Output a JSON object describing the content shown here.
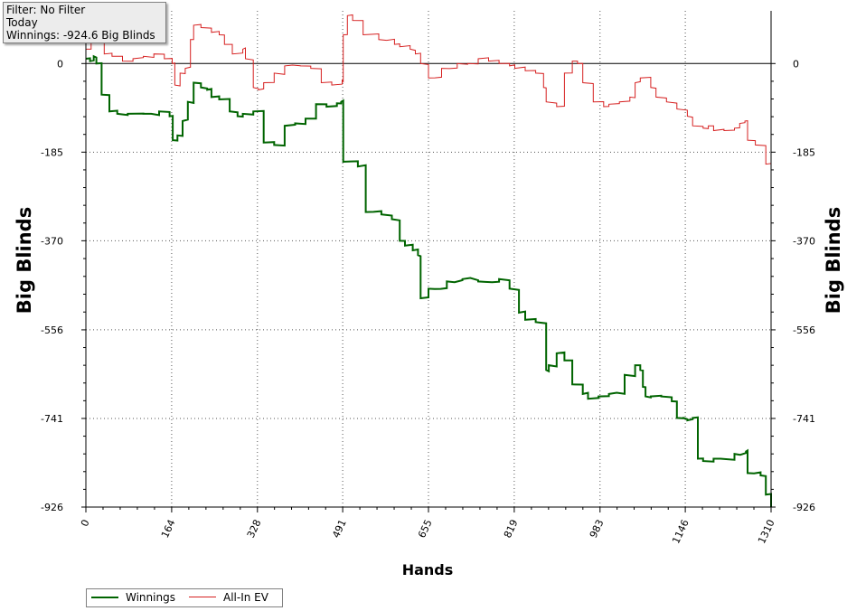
{
  "info": {
    "filter": "Filter: No Filter",
    "period": "Today",
    "winnings": "Winnings: -924.6 Big Blinds"
  },
  "chart_data": {
    "type": "line",
    "title": "",
    "xlabel": "Hands",
    "ylabel": "Big Blinds",
    "xlim": [
      0,
      1310
    ],
    "ylim": [
      -926,
      110
    ],
    "x_ticks": [
      0,
      164,
      328,
      491,
      655,
      819,
      983,
      1146,
      1310
    ],
    "y_ticks": [
      0,
      -185,
      -370,
      -556,
      -741,
      -926
    ],
    "grid": true,
    "legend_position": "bottom-left",
    "colors": {
      "Winnings": "#006400",
      "All-In EV": "#d62020",
      "zero_line": "#000000"
    },
    "series": [
      {
        "name": "Winnings",
        "x": [
          0,
          8,
          15,
          20,
          30,
          45,
          60,
          80,
          110,
          140,
          160,
          166,
          175,
          185,
          195,
          206,
          220,
          232,
          240,
          255,
          275,
          290,
          300,
          320,
          340,
          360,
          380,
          400,
          420,
          440,
          460,
          480,
          488,
          492,
          520,
          535,
          565,
          585,
          600,
          610,
          625,
          635,
          640,
          655,
          690,
          720,
          750,
          790,
          810,
          828,
          840,
          860,
          880,
          885,
          900,
          915,
          930,
          950,
          960,
          980,
          1000,
          1030,
          1050,
          1060,
          1065,
          1070,
          1080,
          1100,
          1120,
          1130,
          1143,
          1150,
          1160,
          1170,
          1180,
          1200,
          1240,
          1262,
          1265,
          1290,
          1300,
          1310
        ],
        "y": [
          10,
          5,
          15,
          0,
          -65,
          -100,
          -105,
          -105,
          -105,
          -100,
          -110,
          -160,
          -150,
          -120,
          -80,
          -40,
          -50,
          -55,
          -70,
          -75,
          -100,
          -110,
          -105,
          -100,
          -165,
          -170,
          -130,
          -125,
          -115,
          -85,
          -90,
          -83,
          -80,
          -205,
          -215,
          -310,
          -315,
          -325,
          -370,
          -380,
          -390,
          -400,
          -490,
          -470,
          -455,
          -450,
          -455,
          -450,
          -470,
          -520,
          -535,
          -540,
          -640,
          -630,
          -605,
          -620,
          -670,
          -690,
          -700,
          -695,
          -690,
          -650,
          -630,
          -640,
          -675,
          -695,
          -695,
          -695,
          -705,
          -740,
          -740,
          -745,
          -740,
          -825,
          -830,
          -825,
          -815,
          -810,
          -855,
          -860,
          -900,
          -926
        ]
      },
      {
        "name": "All-In EV",
        "x": [
          0,
          10,
          20,
          35,
          50,
          70,
          90,
          110,
          130,
          150,
          165,
          170,
          180,
          190,
          200,
          206,
          220,
          240,
          255,
          265,
          280,
          300,
          305,
          320,
          330,
          340,
          360,
          380,
          410,
          430,
          450,
          470,
          490,
          492,
          500,
          510,
          530,
          560,
          590,
          600,
          620,
          630,
          640,
          655,
          680,
          710,
          730,
          750,
          770,
          790,
          810,
          820,
          840,
          860,
          875,
          880,
          900,
          915,
          930,
          940,
          950,
          970,
          990,
          1000,
          1020,
          1040,
          1050,
          1060,
          1080,
          1090,
          1110,
          1130,
          1150,
          1160,
          1180,
          1190,
          1200,
          1220,
          1240,
          1250,
          1260,
          1265,
          1280,
          1300,
          1310
        ],
        "y": [
          30,
          70,
          45,
          20,
          15,
          5,
          10,
          15,
          20,
          10,
          0,
          -45,
          -20,
          -10,
          50,
          80,
          75,
          65,
          60,
          40,
          20,
          30,
          10,
          -50,
          -55,
          -40,
          -20,
          -5,
          -5,
          -10,
          -40,
          -45,
          -35,
          60,
          100,
          90,
          60,
          50,
          40,
          35,
          30,
          20,
          0,
          -30,
          -10,
          0,
          0,
          10,
          5,
          0,
          -5,
          -10,
          -15,
          -20,
          -50,
          -80,
          -90,
          -20,
          5,
          0,
          -40,
          -80,
          -90,
          -85,
          -80,
          -70,
          -40,
          -30,
          -50,
          -70,
          -80,
          -95,
          -110,
          -130,
          -135,
          -130,
          -140,
          -140,
          -135,
          -125,
          -120,
          -160,
          -170,
          -210,
          -240
        ]
      }
    ]
  }
}
